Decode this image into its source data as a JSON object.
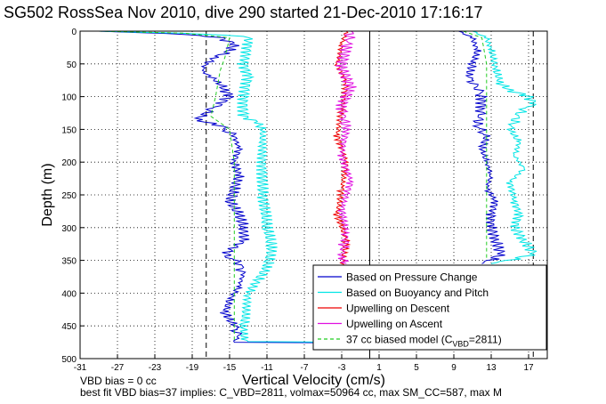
{
  "title": "SG502 RossSea Nov 2010, dive 290 started 21-Dec-2010 17:16:17",
  "footer": {
    "line1": "VBD bias = 0 cc",
    "line2": "best fit VBD bias=37 implies: C_VBD=2811, volmax=50964 cc, max SM_CC=587, max M"
  },
  "chart_data": {
    "type": "line",
    "title": "SG502 RossSea Nov 2010, dive 290 started 21-Dec-2010 17:16:17",
    "xlabel": "Vertical Velocity (cm/s)",
    "ylabel": "Depth (m)",
    "xlim": [
      -31,
      19
    ],
    "ylim": [
      500,
      0
    ],
    "xticks": [
      -31,
      -27,
      -23,
      -19,
      -15,
      -11,
      -7,
      -3,
      1,
      5,
      9,
      13,
      17
    ],
    "yticks": [
      0,
      50,
      100,
      150,
      200,
      250,
      300,
      350,
      400,
      450,
      500
    ],
    "grid": true,
    "legend_position": "bottom-right",
    "reference_lines_x": [
      -17.5,
      0,
      17.5
    ],
    "legend": [
      {
        "label": "Based on Pressure Change",
        "color": "#0000cc",
        "style": "solid"
      },
      {
        "label": "Based on Buoyancy and Pitch",
        "color": "#00e5e5",
        "style": "solid"
      },
      {
        "label": "Upwelling on Descent",
        "color": "#ee0000",
        "style": "solid"
      },
      {
        "label": "Upwelling on Ascent",
        "color": "#e010e0",
        "style": "solid"
      },
      {
        "label": "37 cc biased model (C",
        "sub": "VBD",
        "label_tail": "=2811)",
        "color": "#22cc22",
        "style": "dashed"
      }
    ],
    "series": [
      {
        "key": "pressure_descent",
        "color": "#0000cc",
        "points": [
          [
            -29,
            0
          ],
          [
            -25,
            2
          ],
          [
            -20,
            5
          ],
          [
            -16,
            10
          ],
          [
            -14.5,
            20
          ],
          [
            -15,
            30
          ],
          [
            -16.5,
            40
          ],
          [
            -17.5,
            50
          ],
          [
            -18,
            60
          ],
          [
            -17,
            70
          ],
          [
            -16,
            80
          ],
          [
            -15.5,
            90
          ],
          [
            -15,
            100
          ],
          [
            -16,
            110
          ],
          [
            -17.5,
            125
          ],
          [
            -18.5,
            135
          ],
          [
            -16,
            145
          ],
          [
            -14.5,
            160
          ],
          [
            -14,
            180
          ],
          [
            -14.5,
            200
          ],
          [
            -14,
            220
          ],
          [
            -14.5,
            240
          ],
          [
            -15,
            260
          ],
          [
            -14,
            280
          ],
          [
            -13.5,
            300
          ],
          [
            -13.5,
            320
          ],
          [
            -15.5,
            340
          ],
          [
            -14,
            355
          ],
          [
            -13.5,
            370
          ],
          [
            -14,
            390
          ],
          [
            -15,
            410
          ],
          [
            -15.5,
            430
          ],
          [
            -14.5,
            450
          ],
          [
            -14,
            465
          ],
          [
            -14.5,
            475
          ],
          [
            10,
            477
          ]
        ]
      },
      {
        "key": "buoyancy_descent",
        "color": "#00e5e5",
        "points": [
          [
            -29,
            0
          ],
          [
            -20,
            3
          ],
          [
            -13,
            8
          ],
          [
            -13,
            20
          ],
          [
            -13.5,
            50
          ],
          [
            -13,
            70
          ],
          [
            -13.5,
            100
          ],
          [
            -13.5,
            130
          ],
          [
            -12,
            140
          ],
          [
            -11.5,
            150
          ],
          [
            -11.5,
            250
          ],
          [
            -11,
            300
          ],
          [
            -10.5,
            330
          ],
          [
            -11,
            360
          ],
          [
            -12,
            380
          ],
          [
            -13,
            400
          ],
          [
            -13.5,
            450
          ],
          [
            -13.5,
            470
          ],
          [
            -13,
            474
          ],
          [
            10,
            476
          ]
        ]
      },
      {
        "key": "pressure_ascent",
        "color": "#0000cc",
        "points": [
          [
            9.5,
            0
          ],
          [
            11,
            10
          ],
          [
            11.5,
            30
          ],
          [
            11,
            50
          ],
          [
            10.5,
            70
          ],
          [
            11.5,
            85
          ],
          [
            12,
            100
          ],
          [
            12,
            120
          ],
          [
            11.5,
            145
          ],
          [
            12.5,
            160
          ],
          [
            12,
            180
          ],
          [
            12.5,
            200
          ],
          [
            13,
            220
          ],
          [
            12.5,
            240
          ],
          [
            13.5,
            260
          ],
          [
            13,
            280
          ],
          [
            13,
            300
          ],
          [
            13.5,
            320
          ],
          [
            14,
            340
          ],
          [
            13,
            350
          ],
          [
            12,
            355
          ]
        ]
      },
      {
        "key": "buoyancy_ascent",
        "color": "#00e5e5",
        "points": [
          [
            11,
            0
          ],
          [
            12.5,
            10
          ],
          [
            13,
            30
          ],
          [
            13.5,
            60
          ],
          [
            14,
            80
          ],
          [
            15,
            90
          ],
          [
            17,
            100
          ],
          [
            17.5,
            110
          ],
          [
            16,
            125
          ],
          [
            15,
            150
          ],
          [
            16,
            170
          ],
          [
            15.5,
            190
          ],
          [
            16.5,
            210
          ],
          [
            15,
            230
          ],
          [
            15.5,
            260
          ],
          [
            16,
            280
          ],
          [
            15.5,
            300
          ],
          [
            16.5,
            320
          ],
          [
            17.5,
            340
          ],
          [
            15,
            350
          ],
          [
            13,
            355
          ]
        ]
      },
      {
        "key": "upwelling_descent",
        "color": "#ee0000",
        "points": [
          [
            -2.5,
            0
          ],
          [
            -3,
            20
          ],
          [
            -3.5,
            50
          ],
          [
            -2.5,
            80
          ],
          [
            -3,
            120
          ],
          [
            -3.5,
            160
          ],
          [
            -2.5,
            200
          ],
          [
            -3,
            240
          ],
          [
            -3.5,
            280
          ],
          [
            -2.5,
            320
          ],
          [
            -3,
            360
          ],
          [
            -3,
            400
          ],
          [
            -2.5,
            440
          ],
          [
            -3,
            475
          ]
        ]
      },
      {
        "key": "upwelling_ascent",
        "color": "#e010e0",
        "points": [
          [
            -2,
            0
          ],
          [
            -2.5,
            25
          ],
          [
            -3,
            55
          ],
          [
            -2,
            85
          ],
          [
            -3,
            115
          ],
          [
            -2.5,
            150
          ],
          [
            -3,
            190
          ],
          [
            -2,
            230
          ],
          [
            -3,
            270
          ],
          [
            -2.5,
            310
          ],
          [
            -3,
            345
          ],
          [
            -2.5,
            355
          ]
        ]
      },
      {
        "key": "model_descent",
        "color": "#22cc22",
        "dashed": true,
        "points": [
          [
            -29,
            0
          ],
          [
            -20,
            3
          ],
          [
            -15,
            10
          ],
          [
            -15.5,
            40
          ],
          [
            -16,
            60
          ],
          [
            -16.5,
            100
          ],
          [
            -17,
            130
          ],
          [
            -15,
            150
          ],
          [
            -14.5,
            200
          ],
          [
            -14.5,
            300
          ],
          [
            -14.5,
            400
          ],
          [
            -14.5,
            475
          ]
        ]
      },
      {
        "key": "model_ascent",
        "color": "#22cc22",
        "dashed": true,
        "points": [
          [
            10,
            0
          ],
          [
            12,
            10
          ],
          [
            12.5,
            50
          ],
          [
            12.5,
            100
          ],
          [
            12.5,
            150
          ],
          [
            12.5,
            200
          ],
          [
            12.5,
            250
          ],
          [
            12.5,
            300
          ],
          [
            12.5,
            350
          ]
        ]
      }
    ]
  }
}
